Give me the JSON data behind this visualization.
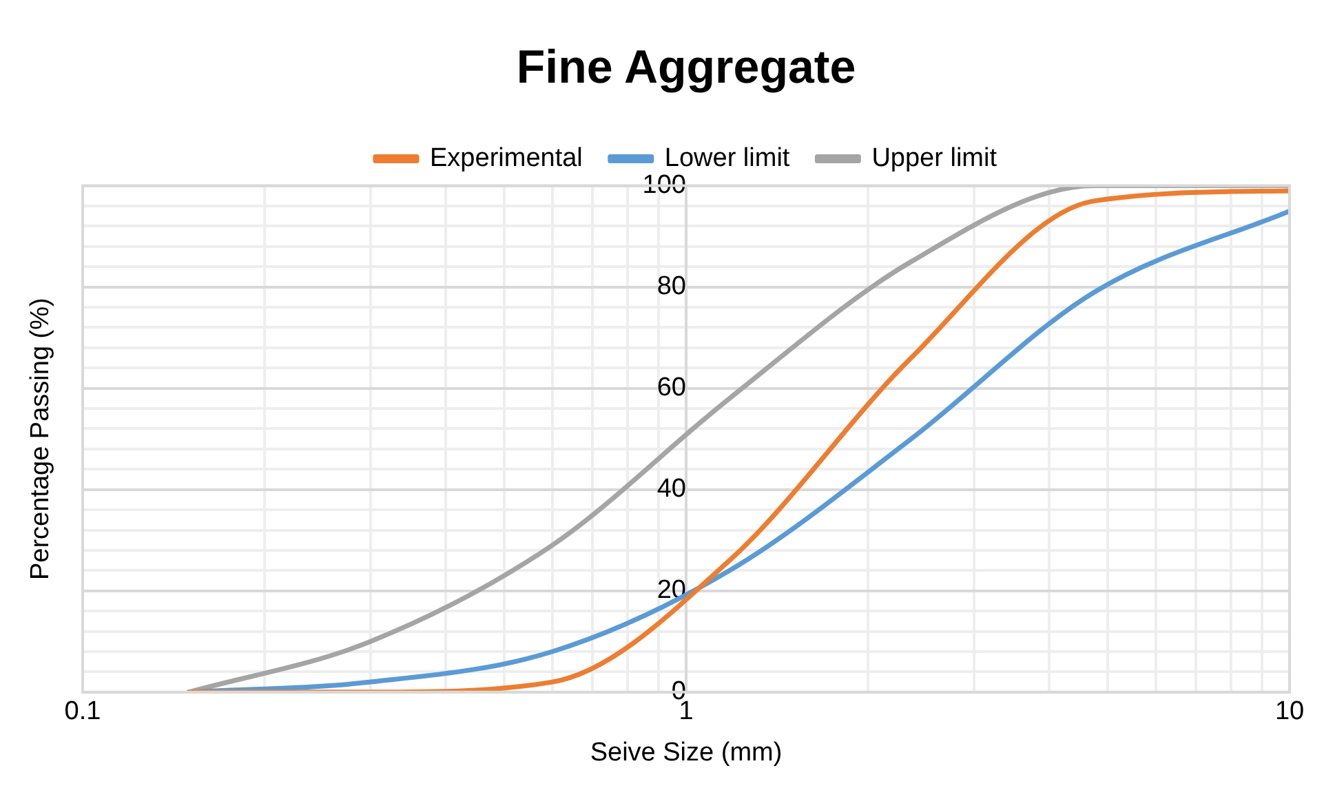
{
  "chart_data": {
    "type": "line",
    "title": "Fine Aggregate",
    "xlabel": "Seive Size (mm)",
    "ylabel": "Percentage Passing (%)",
    "log": "x",
    "x": [
      0.15,
      0.3,
      0.6,
      1.18,
      2.36,
      4.75,
      10
    ],
    "series": [
      {
        "name": "Experimental",
        "color": "#ed7d31",
        "values": [
          0,
          0,
          2,
          26,
          66,
          97,
          99
        ]
      },
      {
        "name": "Lower limit",
        "color": "#5b9bd5",
        "values": [
          0,
          2,
          8,
          24,
          50,
          79,
          95
        ]
      },
      {
        "name": "Upper limit",
        "color": "#a5a5a5",
        "values": [
          0,
          10,
          29,
          58,
          85,
          100,
          100
        ]
      }
    ],
    "xlim": [
      0.1,
      10
    ],
    "xticks": [
      0.1,
      {
        "value": 0.2,
        "label": null
      },
      {
        "value": 0.3,
        "label": null
      },
      {
        "value": 0.4,
        "label": null
      },
      {
        "value": 0.5,
        "label": null
      },
      {
        "value": 0.6,
        "label": null
      },
      {
        "value": 0.7,
        "label": null
      },
      {
        "value": 0.8,
        "label": null
      },
      {
        "value": 0.9,
        "label": null
      },
      1,
      {
        "value": 2,
        "label": null
      },
      {
        "value": 3,
        "label": null
      },
      {
        "value": 4,
        "label": null
      },
      {
        "value": 5,
        "label": null
      },
      {
        "value": 6,
        "label": null
      },
      {
        "value": 7,
        "label": null
      },
      {
        "value": 8,
        "label": null
      },
      {
        "value": 9,
        "label": null
      },
      10
    ],
    "ylim": [
      0,
      100
    ],
    "yticks": [
      0,
      {
        "value": 4,
        "label": null
      },
      {
        "value": 8,
        "label": null
      },
      {
        "value": 12,
        "label": null
      },
      {
        "value": 16,
        "label": null
      },
      20,
      {
        "value": 24,
        "label": null
      },
      {
        "value": 28,
        "label": null
      },
      {
        "value": 32,
        "label": null
      },
      {
        "value": 36,
        "label": null
      },
      40,
      {
        "value": 44,
        "label": null
      },
      {
        "value": 48,
        "label": null
      },
      {
        "value": 52,
        "label": null
      },
      {
        "value": 56,
        "label": null
      },
      60,
      {
        "value": 64,
        "label": null
      },
      {
        "value": 68,
        "label": null
      },
      {
        "value": 72,
        "label": null
      },
      {
        "value": 76,
        "label": null
      },
      80,
      {
        "value": 84,
        "label": null
      },
      {
        "value": 88,
        "label": null
      },
      {
        "value": 92,
        "label": null
      },
      {
        "value": 96,
        "label": null
      },
      100
    ],
    "grid": true,
    "legend": "top",
    "marker": "none",
    "line_style": "solid"
  }
}
